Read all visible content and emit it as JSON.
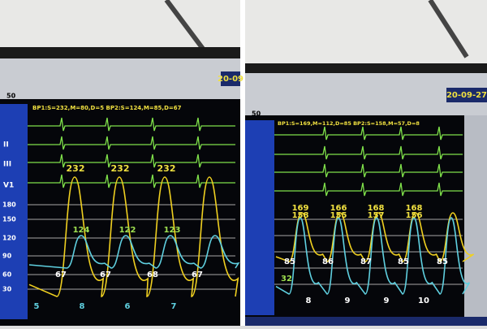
{
  "left": {
    "header": "BP1:S=232,M=80,D=5   BP2:S=124,M=85,D=67",
    "date": "20-09",
    "scale": "50",
    "leads": [
      "II",
      "III",
      "V1"
    ],
    "axis": [
      "180",
      "150",
      "120",
      "90",
      "60",
      "30"
    ],
    "bp1_peaks": [
      "232",
      "232",
      "232"
    ],
    "bp2_peaks": [
      "124",
      "122",
      "123"
    ],
    "bp2_troughs": [
      "67",
      "67",
      "68",
      "67"
    ],
    "bp1_troughs": [
      "5",
      "8",
      "6",
      "7"
    ]
  },
  "right": {
    "header": "BP1:S=169,M=112,D=85  BP2:S=158,M=57,D=8",
    "date": "20-09-27",
    "scale": "50",
    "bp1_peaks": [
      "169",
      "166",
      "168",
      "168"
    ],
    "bp2_peaks": [
      "158",
      "155",
      "157",
      "156"
    ],
    "bp1_troughs": [
      "85",
      "86",
      "87",
      "85",
      "85"
    ],
    "start_value": "32",
    "bp2_troughs": [
      "8",
      "9",
      "9",
      "10"
    ]
  }
}
